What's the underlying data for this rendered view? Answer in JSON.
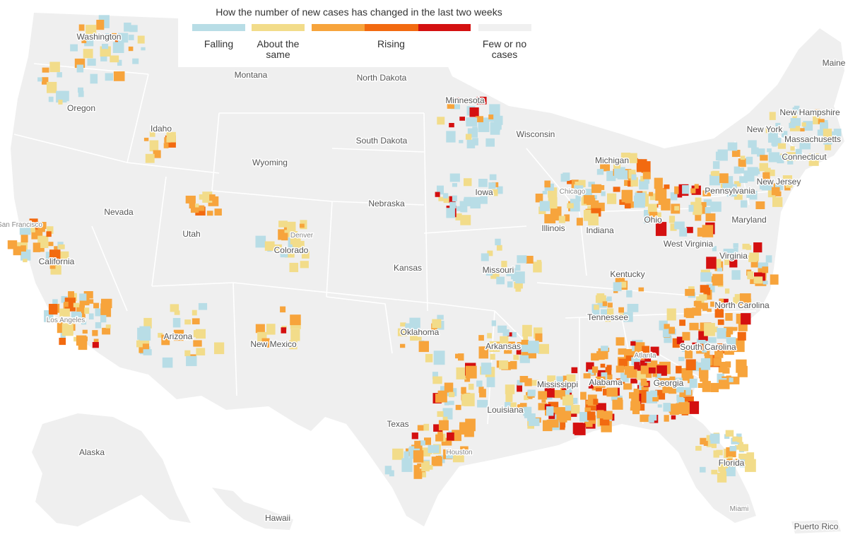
{
  "legend": {
    "title": "How the number of new cases has changed in the last two weeks",
    "categories": [
      {
        "key": "falling",
        "label": "Falling",
        "color": "#b8dde6"
      },
      {
        "key": "same",
        "label": "About the same",
        "color": "#f2dc8a"
      },
      {
        "key": "rising",
        "label": "Rising",
        "colors": [
          "#f7a43c",
          "#f26a10",
          "#d41010"
        ]
      },
      {
        "key": "few",
        "label": "Few or no cases",
        "color": "#f0f0f0"
      }
    ]
  },
  "colors": {
    "land": "#efefef",
    "border": "#ffffff",
    "falling": "#b8dde6",
    "same": "#f2dc8a",
    "rising1": "#f7a43c",
    "rising2": "#f26a10",
    "rising3": "#d41010"
  },
  "states": [
    "Washington",
    "Montana",
    "North Dakota",
    "Minnesota",
    "Oregon",
    "Idaho",
    "South Dakota",
    "Wisconsin",
    "Wyoming",
    "Michigan",
    "New Hampshire",
    "New York",
    "Massachusetts",
    "Connecticut",
    "Maine",
    "Pennsylvania",
    "New Jersey",
    "Nebraska",
    "Iowa",
    "Nevada",
    "Utah",
    "Colorado",
    "Illinois",
    "Indiana",
    "Ohio",
    "Maryland",
    "West Virginia",
    "Virginia",
    "California",
    "Kansas",
    "Missouri",
    "Kentucky",
    "North Carolina",
    "Tennessee",
    "Oklahoma",
    "Arkansas",
    "Arizona",
    "New Mexico",
    "South Carolina",
    "Mississippi",
    "Alabama",
    "Georgia",
    "Louisiana",
    "Texas",
    "Florida",
    "Alaska",
    "Hawaii",
    "Puerto Rico"
  ],
  "cities": [
    "San Francisco",
    "Los Angeles",
    "Denver",
    "Chicago",
    "Atlanta",
    "Houston",
    "Miami"
  ]
}
